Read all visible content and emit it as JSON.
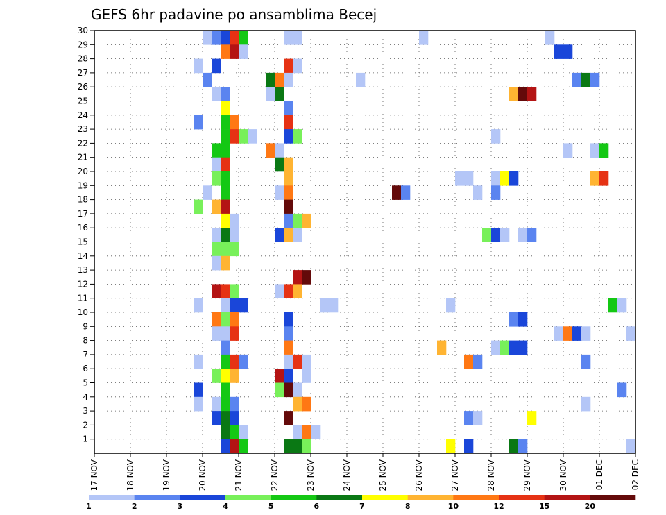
{
  "chart_data": {
    "type": "heatmap",
    "title": "GEFS 6hr padavine po ansamblima Becej",
    "xlabel": "",
    "ylabel": "",
    "x_tick_labels": [
      "17 NOV",
      "18 NOV",
      "19 NOV",
      "20 NOV",
      "21 NOV",
      "22 NOV",
      "23 NOV",
      "24 NOV",
      "25 NOV",
      "26 NOV",
      "27 NOV",
      "28 NOV",
      "29 NOV",
      "30 NOV",
      "01 DEC",
      "02 DEC"
    ],
    "y_tick_labels": [
      "1",
      "2",
      "3",
      "4",
      "5",
      "6",
      "7",
      "8",
      "9",
      "10",
      "11",
      "12",
      "13",
      "14",
      "15",
      "16",
      "17",
      "18",
      "19",
      "20",
      "21",
      "22",
      "23",
      "24",
      "25",
      "26",
      "27",
      "28",
      "29",
      "30"
    ],
    "x_range_days": [
      0,
      15
    ],
    "y_range": [
      0,
      30
    ],
    "step_hours": 6,
    "grid": true,
    "legend": {
      "placement": "bottom",
      "boundaries": [
        1,
        2,
        3,
        4,
        5,
        6,
        7,
        8,
        10,
        12,
        15,
        20
      ],
      "labels": [
        "1",
        "2",
        "3",
        "4",
        "5",
        "6",
        "7",
        "8",
        "10",
        "12",
        "15",
        "20"
      ],
      "colors": [
        "#b4c6f7",
        "#5a84f0",
        "#1a46d9",
        "#78f05a",
        "#14c814",
        "#0a7814",
        "#ffff00",
        "#ffb432",
        "#ff7814",
        "#e63214",
        "#b41414",
        "#640a0a"
      ]
    },
    "cells": [
      {
        "m": 30,
        "d": 3.0,
        "c": 0
      },
      {
        "m": 30,
        "d": 3.25,
        "c": 1
      },
      {
        "m": 30,
        "d": 3.5,
        "c": 2
      },
      {
        "m": 30,
        "d": 3.75,
        "c": 9
      },
      {
        "m": 30,
        "d": 4.0,
        "c": 4
      },
      {
        "m": 30,
        "d": 5.25,
        "c": 0
      },
      {
        "m": 30,
        "d": 5.5,
        "c": 0
      },
      {
        "m": 30,
        "d": 9.0,
        "c": 0
      },
      {
        "m": 30,
        "d": 12.5,
        "c": 0
      },
      {
        "m": 29,
        "d": 3.5,
        "c": 8
      },
      {
        "m": 29,
        "d": 3.75,
        "c": 10
      },
      {
        "m": 29,
        "d": 4.0,
        "c": 0
      },
      {
        "m": 29,
        "d": 12.75,
        "c": 2
      },
      {
        "m": 29,
        "d": 13.0,
        "c": 2
      },
      {
        "m": 28,
        "d": 2.75,
        "c": 0
      },
      {
        "m": 28,
        "d": 3.25,
        "c": 2
      },
      {
        "m": 28,
        "d": 5.25,
        "c": 9
      },
      {
        "m": 28,
        "d": 5.5,
        "c": 0
      },
      {
        "m": 27,
        "d": 3.0,
        "c": 1
      },
      {
        "m": 27,
        "d": 4.75,
        "c": 5
      },
      {
        "m": 27,
        "d": 5.0,
        "c": 8
      },
      {
        "m": 27,
        "d": 5.25,
        "c": 0
      },
      {
        "m": 27,
        "d": 7.25,
        "c": 0
      },
      {
        "m": 27,
        "d": 13.25,
        "c": 1
      },
      {
        "m": 27,
        "d": 13.5,
        "c": 5
      },
      {
        "m": 27,
        "d": 13.75,
        "c": 1
      },
      {
        "m": 26,
        "d": 3.25,
        "c": 0
      },
      {
        "m": 26,
        "d": 3.5,
        "c": 1
      },
      {
        "m": 26,
        "d": 4.75,
        "c": 0
      },
      {
        "m": 26,
        "d": 5.0,
        "c": 5
      },
      {
        "m": 26,
        "d": 11.5,
        "c": 7
      },
      {
        "m": 26,
        "d": 11.75,
        "c": 11
      },
      {
        "m": 26,
        "d": 12.0,
        "c": 10
      },
      {
        "m": 25,
        "d": 3.5,
        "c": 6
      },
      {
        "m": 25,
        "d": 5.25,
        "c": 1
      },
      {
        "m": 24,
        "d": 2.75,
        "c": 1
      },
      {
        "m": 24,
        "d": 3.5,
        "c": 4
      },
      {
        "m": 24,
        "d": 3.75,
        "c": 8
      },
      {
        "m": 24,
        "d": 5.25,
        "c": 9
      },
      {
        "m": 23,
        "d": 3.5,
        "c": 4
      },
      {
        "m": 23,
        "d": 3.75,
        "c": 9
      },
      {
        "m": 23,
        "d": 4.0,
        "c": 3
      },
      {
        "m": 23,
        "d": 4.25,
        "c": 0
      },
      {
        "m": 23,
        "d": 5.25,
        "c": 2
      },
      {
        "m": 23,
        "d": 5.5,
        "c": 3
      },
      {
        "m": 23,
        "d": 11.0,
        "c": 0
      },
      {
        "m": 22,
        "d": 3.25,
        "c": 4
      },
      {
        "m": 22,
        "d": 3.5,
        "c": 4
      },
      {
        "m": 22,
        "d": 4.75,
        "c": 8
      },
      {
        "m": 22,
        "d": 5.0,
        "c": 0
      },
      {
        "m": 22,
        "d": 13.0,
        "c": 0
      },
      {
        "m": 22,
        "d": 13.75,
        "c": 0
      },
      {
        "m": 22,
        "d": 14.0,
        "c": 4
      },
      {
        "m": 21,
        "d": 3.25,
        "c": 0
      },
      {
        "m": 21,
        "d": 3.5,
        "c": 9
      },
      {
        "m": 21,
        "d": 5.0,
        "c": 5
      },
      {
        "m": 21,
        "d": 5.25,
        "c": 7
      },
      {
        "m": 20,
        "d": 3.25,
        "c": 3
      },
      {
        "m": 20,
        "d": 3.5,
        "c": 4
      },
      {
        "m": 20,
        "d": 5.25,
        "c": 7
      },
      {
        "m": 20,
        "d": 10.0,
        "c": 0
      },
      {
        "m": 20,
        "d": 10.25,
        "c": 0
      },
      {
        "m": 20,
        "d": 11.0,
        "c": 0
      },
      {
        "m": 20,
        "d": 11.25,
        "c": 6
      },
      {
        "m": 20,
        "d": 11.5,
        "c": 2
      },
      {
        "m": 20,
        "d": 13.75,
        "c": 7
      },
      {
        "m": 20,
        "d": 14.0,
        "c": 9
      },
      {
        "m": 19,
        "d": 3.0,
        "c": 0
      },
      {
        "m": 19,
        "d": 3.5,
        "c": 4
      },
      {
        "m": 19,
        "d": 5.0,
        "c": 0
      },
      {
        "m": 19,
        "d": 5.25,
        "c": 8
      },
      {
        "m": 19,
        "d": 8.25,
        "c": 11
      },
      {
        "m": 19,
        "d": 8.5,
        "c": 1
      },
      {
        "m": 19,
        "d": 10.5,
        "c": 0
      },
      {
        "m": 19,
        "d": 11.0,
        "c": 1
      },
      {
        "m": 18,
        "d": 2.75,
        "c": 3
      },
      {
        "m": 18,
        "d": 3.25,
        "c": 7
      },
      {
        "m": 18,
        "d": 3.5,
        "c": 10
      },
      {
        "m": 18,
        "d": 5.25,
        "c": 11
      },
      {
        "m": 17,
        "d": 3.5,
        "c": 6
      },
      {
        "m": 17,
        "d": 3.75,
        "c": 0
      },
      {
        "m": 17,
        "d": 5.25,
        "c": 1
      },
      {
        "m": 17,
        "d": 5.5,
        "c": 3
      },
      {
        "m": 17,
        "d": 5.75,
        "c": 7
      },
      {
        "m": 16,
        "d": 3.25,
        "c": 0
      },
      {
        "m": 16,
        "d": 3.5,
        "c": 5
      },
      {
        "m": 16,
        "d": 3.75,
        "c": 0
      },
      {
        "m": 16,
        "d": 5.0,
        "c": 2
      },
      {
        "m": 16,
        "d": 5.25,
        "c": 7
      },
      {
        "m": 16,
        "d": 5.5,
        "c": 0
      },
      {
        "m": 16,
        "d": 10.75,
        "c": 3
      },
      {
        "m": 16,
        "d": 11.0,
        "c": 2
      },
      {
        "m": 16,
        "d": 11.25,
        "c": 0
      },
      {
        "m": 16,
        "d": 11.75,
        "c": 0
      },
      {
        "m": 16,
        "d": 12.0,
        "c": 1
      },
      {
        "m": 15,
        "d": 3.25,
        "c": 3
      },
      {
        "m": 15,
        "d": 3.5,
        "c": 3
      },
      {
        "m": 15,
        "d": 3.75,
        "c": 3
      },
      {
        "m": 14,
        "d": 3.25,
        "c": 0
      },
      {
        "m": 14,
        "d": 3.5,
        "c": 7
      },
      {
        "m": 13,
        "d": 5.5,
        "c": 10
      },
      {
        "m": 13,
        "d": 5.75,
        "c": 11
      },
      {
        "m": 12,
        "d": 3.25,
        "c": 10
      },
      {
        "m": 12,
        "d": 3.5,
        "c": 9
      },
      {
        "m": 12,
        "d": 3.75,
        "c": 3
      },
      {
        "m": 12,
        "d": 5.0,
        "c": 0
      },
      {
        "m": 12,
        "d": 5.25,
        "c": 9
      },
      {
        "m": 12,
        "d": 5.5,
        "c": 7
      },
      {
        "m": 11,
        "d": 2.75,
        "c": 0
      },
      {
        "m": 11,
        "d": 3.5,
        "c": 0
      },
      {
        "m": 11,
        "d": 3.75,
        "c": 2
      },
      {
        "m": 11,
        "d": 4.0,
        "c": 2
      },
      {
        "m": 11,
        "d": 6.25,
        "c": 0
      },
      {
        "m": 11,
        "d": 6.5,
        "c": 0
      },
      {
        "m": 11,
        "d": 9.75,
        "c": 0
      },
      {
        "m": 11,
        "d": 14.25,
        "c": 4
      },
      {
        "m": 11,
        "d": 14.5,
        "c": 0
      },
      {
        "m": 10,
        "d": 3.25,
        "c": 8
      },
      {
        "m": 10,
        "d": 3.5,
        "c": 3
      },
      {
        "m": 10,
        "d": 3.75,
        "c": 8
      },
      {
        "m": 10,
        "d": 5.25,
        "c": 2
      },
      {
        "m": 10,
        "d": 11.5,
        "c": 1
      },
      {
        "m": 10,
        "d": 11.75,
        "c": 2
      },
      {
        "m": 9,
        "d": 3.25,
        "c": 0
      },
      {
        "m": 9,
        "d": 3.5,
        "c": 0
      },
      {
        "m": 9,
        "d": 3.75,
        "c": 9
      },
      {
        "m": 9,
        "d": 5.25,
        "c": 1
      },
      {
        "m": 9,
        "d": 12.75,
        "c": 0
      },
      {
        "m": 9,
        "d": 13.0,
        "c": 8
      },
      {
        "m": 9,
        "d": 13.25,
        "c": 2
      },
      {
        "m": 9,
        "d": 13.5,
        "c": 0
      },
      {
        "m": 9,
        "d": 14.75,
        "c": 0
      },
      {
        "m": 8,
        "d": 3.5,
        "c": 1
      },
      {
        "m": 8,
        "d": 5.25,
        "c": 8
      },
      {
        "m": 8,
        "d": 9.5,
        "c": 7
      },
      {
        "m": 8,
        "d": 11.0,
        "c": 0
      },
      {
        "m": 8,
        "d": 11.25,
        "c": 3
      },
      {
        "m": 8,
        "d": 11.5,
        "c": 2
      },
      {
        "m": 8,
        "d": 11.75,
        "c": 2
      },
      {
        "m": 7,
        "d": 2.75,
        "c": 0
      },
      {
        "m": 7,
        "d": 3.5,
        "c": 4
      },
      {
        "m": 7,
        "d": 3.75,
        "c": 9
      },
      {
        "m": 7,
        "d": 4.0,
        "c": 1
      },
      {
        "m": 7,
        "d": 5.25,
        "c": 0
      },
      {
        "m": 7,
        "d": 5.5,
        "c": 9
      },
      {
        "m": 7,
        "d": 5.75,
        "c": 0
      },
      {
        "m": 7,
        "d": 10.25,
        "c": 8
      },
      {
        "m": 7,
        "d": 10.5,
        "c": 1
      },
      {
        "m": 7,
        "d": 13.5,
        "c": 1
      },
      {
        "m": 6,
        "d": 3.25,
        "c": 3
      },
      {
        "m": 6,
        "d": 3.5,
        "c": 6
      },
      {
        "m": 6,
        "d": 3.75,
        "c": 7
      },
      {
        "m": 6,
        "d": 5.0,
        "c": 10
      },
      {
        "m": 6,
        "d": 5.25,
        "c": 2
      },
      {
        "m": 6,
        "d": 5.75,
        "c": 0
      },
      {
        "m": 5,
        "d": 2.75,
        "c": 2
      },
      {
        "m": 5,
        "d": 3.5,
        "c": 4
      },
      {
        "m": 5,
        "d": 5.0,
        "c": 3
      },
      {
        "m": 5,
        "d": 5.25,
        "c": 11
      },
      {
        "m": 5,
        "d": 5.5,
        "c": 0
      },
      {
        "m": 5,
        "d": 14.5,
        "c": 1
      },
      {
        "m": 4,
        "d": 2.75,
        "c": 0
      },
      {
        "m": 4,
        "d": 3.25,
        "c": 0
      },
      {
        "m": 4,
        "d": 3.5,
        "c": 4
      },
      {
        "m": 4,
        "d": 3.75,
        "c": 1
      },
      {
        "m": 4,
        "d": 5.5,
        "c": 7
      },
      {
        "m": 4,
        "d": 5.75,
        "c": 8
      },
      {
        "m": 4,
        "d": 13.5,
        "c": 0
      },
      {
        "m": 3,
        "d": 3.25,
        "c": 2
      },
      {
        "m": 3,
        "d": 3.5,
        "c": 5
      },
      {
        "m": 3,
        "d": 3.75,
        "c": 2
      },
      {
        "m": 3,
        "d": 5.25,
        "c": 11
      },
      {
        "m": 3,
        "d": 10.25,
        "c": 1
      },
      {
        "m": 3,
        "d": 10.5,
        "c": 0
      },
      {
        "m": 3,
        "d": 12.0,
        "c": 6
      },
      {
        "m": 2,
        "d": 3.5,
        "c": 5
      },
      {
        "m": 2,
        "d": 3.75,
        "c": 4
      },
      {
        "m": 2,
        "d": 4.0,
        "c": 0
      },
      {
        "m": 2,
        "d": 5.5,
        "c": 0
      },
      {
        "m": 2,
        "d": 5.75,
        "c": 8
      },
      {
        "m": 2,
        "d": 6.0,
        "c": 0
      },
      {
        "m": 1,
        "d": 3.5,
        "c": 2
      },
      {
        "m": 1,
        "d": 3.75,
        "c": 10
      },
      {
        "m": 1,
        "d": 4.0,
        "c": 4
      },
      {
        "m": 1,
        "d": 5.25,
        "c": 5
      },
      {
        "m": 1,
        "d": 5.5,
        "c": 5
      },
      {
        "m": 1,
        "d": 5.75,
        "c": 3
      },
      {
        "m": 1,
        "d": 9.75,
        "c": 6
      },
      {
        "m": 1,
        "d": 10.25,
        "c": 2
      },
      {
        "m": 1,
        "d": 11.5,
        "c": 5
      },
      {
        "m": 1,
        "d": 11.75,
        "c": 1
      },
      {
        "m": 1,
        "d": 14.75,
        "c": 0
      }
    ]
  }
}
